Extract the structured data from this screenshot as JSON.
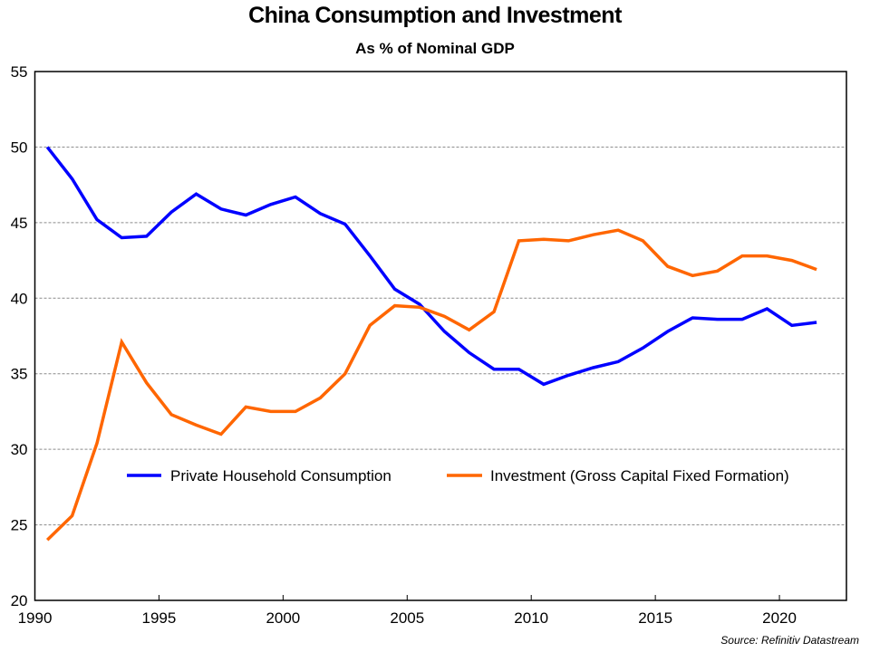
{
  "chart_data": {
    "type": "line",
    "title": "China Consumption and Investment",
    "subtitle": "As % of Nominal GDP",
    "xlabel": "",
    "ylabel": "",
    "source": "Source: Refinitiv Datastream",
    "x": [
      1990.5,
      1991.5,
      1992.5,
      1993.5,
      1994.5,
      1995.5,
      1996.5,
      1997.5,
      1998.5,
      1999.5,
      2000.5,
      2001.5,
      2002.5,
      2003.5,
      2004.5,
      2005.5,
      2006.5,
      2007.5,
      2008.5,
      2009.5,
      2010.5,
      2011.5,
      2012.5,
      2013.5,
      2014.5,
      2015.5,
      2016.5,
      2017.5,
      2018.5,
      2019.5,
      2020.5,
      2021.5
    ],
    "series": [
      {
        "name": "Private Household Consumption",
        "color": "#0000FF",
        "values": [
          50.0,
          47.9,
          45.2,
          44.0,
          44.1,
          45.7,
          46.9,
          45.9,
          45.5,
          46.2,
          46.7,
          45.6,
          44.9,
          42.8,
          40.6,
          39.6,
          37.8,
          36.4,
          35.3,
          35.3,
          34.3,
          34.9,
          35.4,
          35.8,
          36.7,
          37.8,
          38.7,
          38.6,
          38.6,
          39.3,
          38.2,
          38.4
        ]
      },
      {
        "name": "Investment (Gross Capital Fixed Formation)",
        "color": "#FF6600",
        "values": [
          24.0,
          25.6,
          30.4,
          37.1,
          34.4,
          32.3,
          31.6,
          31.0,
          32.8,
          32.5,
          32.5,
          33.4,
          35.0,
          38.2,
          39.5,
          39.4,
          38.8,
          37.9,
          39.1,
          43.8,
          43.9,
          43.8,
          44.2,
          44.5,
          43.8,
          42.1,
          41.5,
          41.8,
          42.8,
          42.8,
          42.5,
          41.9
        ]
      }
    ],
    "xlim": [
      1990,
      2022.7
    ],
    "ylim": [
      20,
      55
    ],
    "x_ticks": [
      1990,
      1995,
      2000,
      2005,
      2010,
      2015,
      2020
    ],
    "x_tick_labels": [
      "1990",
      "1995",
      "2000",
      "2005",
      "2010",
      "2015",
      "2020"
    ],
    "y_ticks": [
      20,
      25,
      30,
      35,
      40,
      45,
      50,
      55
    ],
    "y_tick_labels": [
      "20",
      "25",
      "30",
      "35",
      "40",
      "45",
      "50",
      "55"
    ],
    "grid": "horizontal dashed",
    "legend_position": "center, inside plot"
  }
}
